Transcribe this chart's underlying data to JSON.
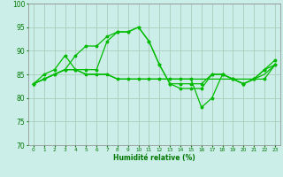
{
  "xlabel": "Humidité relative (%)",
  "background_color": "#cceee8",
  "grid_color": "#aaccbb",
  "line_color": "#00bb00",
  "xlim": [
    -0.5,
    23.5
  ],
  "ylim": [
    70,
    100
  ],
  "yticks": [
    70,
    75,
    80,
    85,
    90,
    95,
    100
  ],
  "xticks": [
    0,
    1,
    2,
    3,
    4,
    5,
    6,
    7,
    8,
    9,
    10,
    11,
    12,
    13,
    14,
    15,
    16,
    17,
    18,
    19,
    20,
    21,
    22,
    23
  ],
  "series": [
    [
      83,
      84,
      85,
      86,
      86,
      85,
      85,
      85,
      84,
      84,
      84,
      84,
      84,
      84,
      84,
      84,
      84,
      84,
      84,
      84,
      84,
      84,
      85,
      87
    ],
    [
      83,
      85,
      86,
      89,
      86,
      86,
      86,
      92,
      94,
      94,
      95,
      92,
      87,
      83,
      83,
      83,
      83,
      85,
      85,
      84,
      83,
      84,
      86,
      87
    ],
    [
      83,
      84,
      85,
      86,
      89,
      91,
      91,
      93,
      94,
      94,
      95,
      92,
      87,
      83,
      82,
      82,
      82,
      85,
      85,
      84,
      83,
      84,
      86,
      88
    ],
    [
      83,
      84,
      85,
      86,
      86,
      85,
      85,
      85,
      84,
      84,
      84,
      84,
      84,
      84,
      84,
      84,
      78,
      80,
      85,
      84,
      83,
      84,
      84,
      87
    ]
  ]
}
